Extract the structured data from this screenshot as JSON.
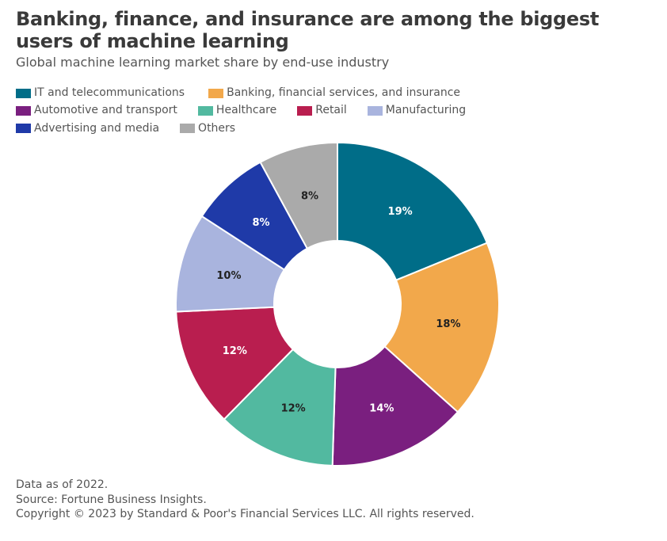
{
  "title": "Banking, finance, and insurance are among the biggest users of machine learning",
  "subtitle": "Global machine learning market share by end-use industry",
  "chart_data": {
    "type": "pie",
    "donut": true,
    "title": "Banking, finance, and insurance are among the biggest users of machine learning",
    "categories": [
      "IT and telecommunications",
      "Banking, financial services, and insurance",
      "Automotive and transport",
      "Healthcare",
      "Retail",
      "Manufacturing",
      "Advertising and media",
      "Others"
    ],
    "values": [
      19,
      18,
      14,
      12,
      12,
      10,
      8,
      8
    ],
    "labels": [
      "19%",
      "18%",
      "14%",
      "12%",
      "12%",
      "10%",
      "8%",
      "8%"
    ],
    "colors": [
      "#006d88",
      "#f2a84b",
      "#7a1f7f",
      "#52b9a0",
      "#b91e4f",
      "#a9b4de",
      "#1f3aa8",
      "#aaaaaa"
    ],
    "label_colors": [
      "#ffffff",
      "#222222",
      "#ffffff",
      "#222222",
      "#ffffff",
      "#222222",
      "#ffffff",
      "#222222"
    ],
    "legend_position": "top-left"
  },
  "footer": [
    "Data as of 2022.",
    "Source: Fortune Business Insights.",
    "Copyright © 2023 by Standard & Poor's Financial Services LLC. All rights reserved."
  ]
}
